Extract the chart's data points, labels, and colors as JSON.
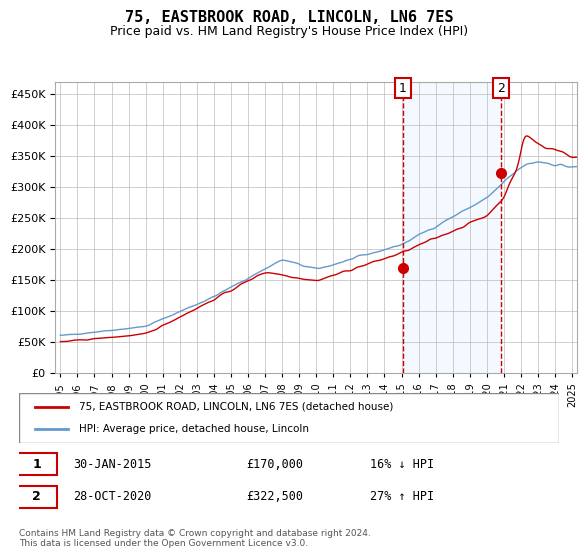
{
  "title": "75, EASTBROOK ROAD, LINCOLN, LN6 7ES",
  "subtitle": "Price paid vs. HM Land Registry's House Price Index (HPI)",
  "legend_label_red": "75, EASTBROOK ROAD, LINCOLN, LN6 7ES (detached house)",
  "legend_label_blue": "HPI: Average price, detached house, Lincoln",
  "annotation1_label": "1",
  "annotation1_date": "30-JAN-2015",
  "annotation1_price": "£170,000",
  "annotation1_info": "16% ↓ HPI",
  "annotation1_year": 2015.08,
  "annotation1_value": 170000,
  "annotation2_label": "2",
  "annotation2_date": "28-OCT-2020",
  "annotation2_price": "£322,500",
  "annotation2_info": "27% ↑ HPI",
  "annotation2_year": 2020.83,
  "annotation2_value": 322500,
  "footer": "Contains HM Land Registry data © Crown copyright and database right 2024.\nThis data is licensed under the Open Government Licence v3.0.",
  "ylim": [
    0,
    470000
  ],
  "year_start": 1995,
  "year_end": 2025,
  "red_color": "#cc0000",
  "blue_color": "#6699cc",
  "shade_color": "#ddeeff",
  "background_color": "#ffffff",
  "grid_color": "#bbbbbb"
}
